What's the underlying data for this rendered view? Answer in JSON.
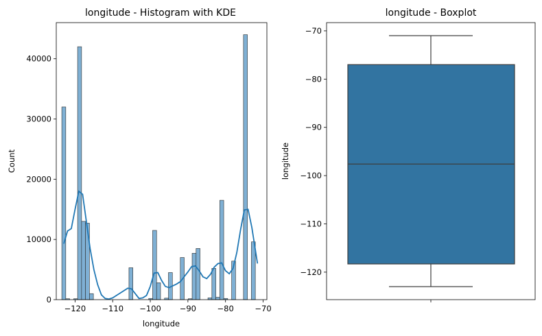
{
  "chart_data": [
    {
      "type": "histogram",
      "title": "longitude - Histogram with KDE",
      "xlabel": "longitude",
      "ylabel": "Count",
      "xlim": [
        -125,
        -69
      ],
      "ylim": [
        0,
        46000
      ],
      "xticks": [
        -120,
        -110,
        -100,
        -90,
        -80,
        -70
      ],
      "xtick_labels": [
        "−120",
        "−110",
        "−100",
        "−90",
        "−80",
        "−70"
      ],
      "yticks": [
        0,
        10000,
        20000,
        30000,
        40000
      ],
      "ytick_labels": [
        "0",
        "10000",
        "20000",
        "30000",
        "40000"
      ],
      "grid": false,
      "bar_color": "#7fb0d4",
      "kde_color": "#1f77b4",
      "bin_width": 1.05,
      "bins": [
        {
          "x": -123.0,
          "count": 32000
        },
        {
          "x": -121.95,
          "count": 150
        },
        {
          "x": -119.85,
          "count": 150
        },
        {
          "x": -118.8,
          "count": 42000
        },
        {
          "x": -117.75,
          "count": 13000
        },
        {
          "x": -116.7,
          "count": 12700
        },
        {
          "x": -115.65,
          "count": 1000
        },
        {
          "x": -105.15,
          "count": 5300
        },
        {
          "x": -99.9,
          "count": 200
        },
        {
          "x": -98.85,
          "count": 11500
        },
        {
          "x": -97.8,
          "count": 2800
        },
        {
          "x": -95.7,
          "count": 250
        },
        {
          "x": -94.65,
          "count": 4500
        },
        {
          "x": -91.5,
          "count": 7000
        },
        {
          "x": -89.4,
          "count": 150
        },
        {
          "x": -88.35,
          "count": 7700
        },
        {
          "x": -87.3,
          "count": 8500
        },
        {
          "x": -84.15,
          "count": 300
        },
        {
          "x": -83.1,
          "count": 5200
        },
        {
          "x": -82.05,
          "count": 400
        },
        {
          "x": -81.0,
          "count": 16500
        },
        {
          "x": -79.95,
          "count": 200
        },
        {
          "x": -77.85,
          "count": 6400
        },
        {
          "x": -74.7,
          "count": 44000
        },
        {
          "x": -72.6,
          "count": 9600
        }
      ],
      "kde": {
        "x": [
          -123,
          -122,
          -121,
          -120,
          -119,
          -118,
          -117,
          -116,
          -115,
          -114,
          -113,
          -112,
          -111,
          -110,
          -109,
          -108,
          -107,
          -106,
          -105,
          -104,
          -103,
          -102,
          -101,
          -100,
          -99,
          -98,
          -97,
          -96,
          -95,
          -94,
          -93,
          -92,
          -91,
          -90,
          -89,
          -88,
          -87,
          -86,
          -85,
          -84,
          -83,
          -82,
          -81,
          -80,
          -79,
          -78,
          -77,
          -76,
          -75,
          -74,
          -73,
          -72,
          -71.5
        ],
        "y": [
          9300,
          11400,
          11800,
          15000,
          18000,
          17500,
          13000,
          8500,
          5000,
          2500,
          800,
          200,
          100,
          300,
          700,
          1100,
          1500,
          1900,
          1800,
          1000,
          200,
          300,
          700,
          2200,
          4400,
          4500,
          3200,
          2200,
          2000,
          2300,
          2600,
          3000,
          3800,
          4600,
          5500,
          5600,
          4800,
          3800,
          3500,
          4200,
          5400,
          6000,
          6100,
          4800,
          4300,
          5200,
          7800,
          11600,
          14900,
          15000,
          12000,
          8000,
          6000
        ]
      }
    },
    {
      "type": "boxplot",
      "title": "longitude - Boxplot",
      "xlabel": "",
      "ylabel": "longitude",
      "ylim": [
        -125.7,
        -68.3
      ],
      "yticks": [
        -70,
        -80,
        -90,
        -100,
        -110,
        -120
      ],
      "ytick_labels": [
        "−70",
        "−80",
        "−90",
        "−100",
        "−110",
        "−120"
      ],
      "grid": false,
      "box_color": "#3274a1",
      "line_color": "#3d3d3d",
      "stats": {
        "whisker_low": -123.0,
        "q1": -118.3,
        "median": -97.6,
        "q3": -77.0,
        "whisker_high": -71.0
      }
    }
  ]
}
